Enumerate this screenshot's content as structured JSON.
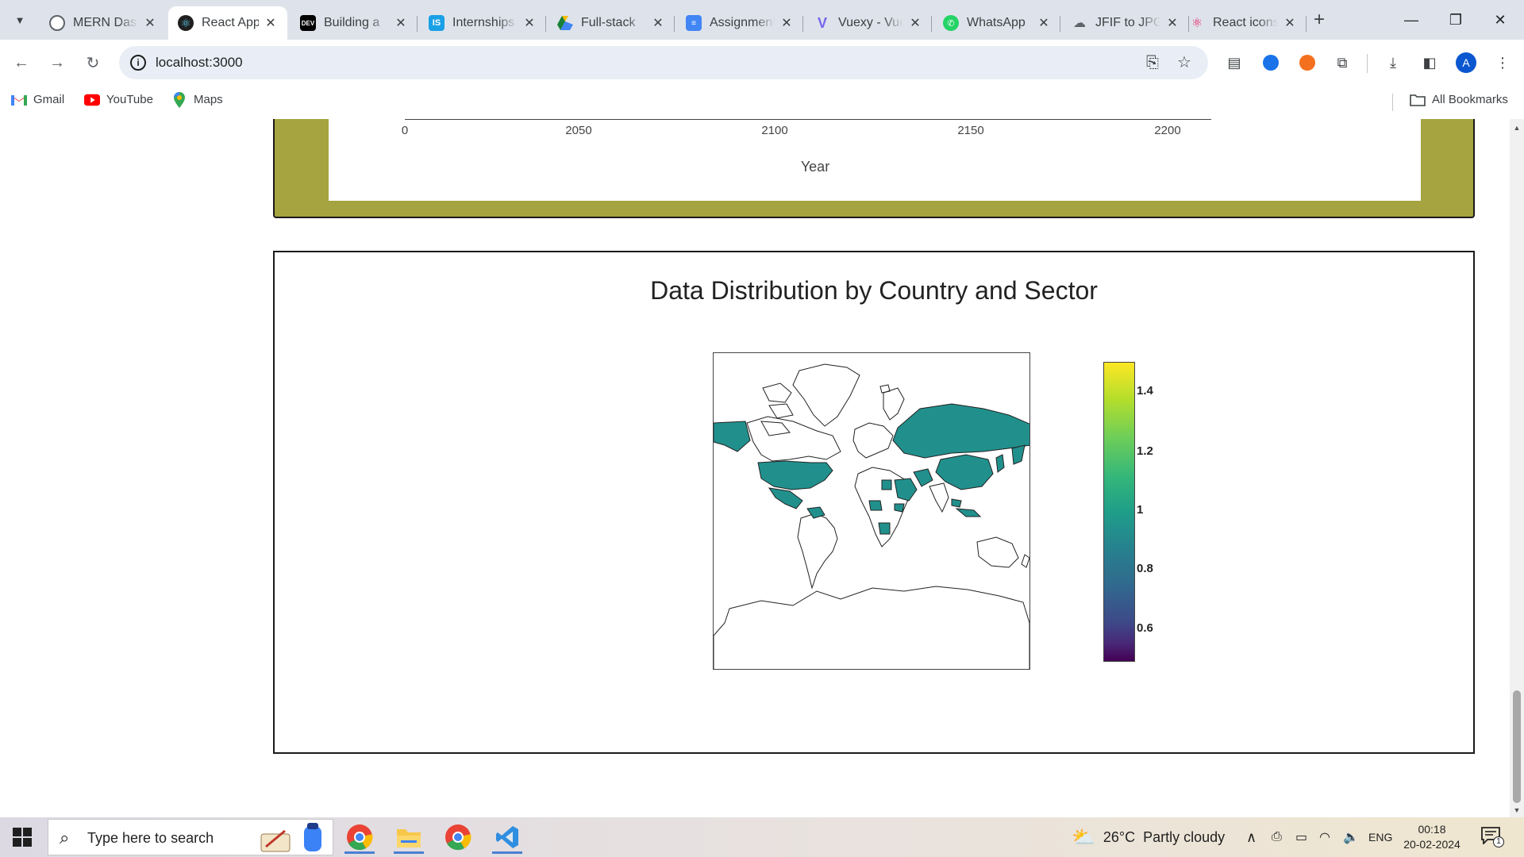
{
  "browser": {
    "tabs": [
      {
        "title": "MERN Dashboard",
        "favicon": "openai-icon",
        "color": "#202124",
        "active": false
      },
      {
        "title": "React App",
        "favicon": "react-icon",
        "color": "#1f1f1f",
        "active": true
      },
      {
        "title": "Building a",
        "favicon": "dev-icon",
        "color": "#000000",
        "active": false
      },
      {
        "title": "Internships",
        "favicon": "internshala-icon",
        "color": "#1aa0e6",
        "active": false
      },
      {
        "title": "Full-stack",
        "favicon": "google-drive-icon",
        "color": "#188038",
        "active": false
      },
      {
        "title": "Assignment",
        "favicon": "google-docs-icon",
        "color": "#4285f4",
        "active": false
      },
      {
        "title": "Vuexy - Vuejs",
        "favicon": "vuexy-icon",
        "color": "#7367f0",
        "active": false
      },
      {
        "title": "WhatsApp",
        "favicon": "whatsapp-icon",
        "color": "#25d366",
        "active": false
      },
      {
        "title": "JFIF to JPG",
        "favicon": "cloud-icon",
        "color": "#5f6368",
        "active": false
      },
      {
        "title": "React icons",
        "favicon": "react-icon",
        "color": "#e91e63",
        "active": false
      }
    ],
    "url": "localhost:3000",
    "avatar_letter": "A",
    "bookmarks": [
      {
        "label": "Gmail",
        "icon": "gmail-icon"
      },
      {
        "label": "YouTube",
        "icon": "youtube-icon"
      },
      {
        "label": "Maps",
        "icon": "maps-icon"
      }
    ],
    "all_bookmarks_label": "All Bookmarks"
  },
  "colors": {
    "olive_panel": "#a5a440",
    "country_fill": "#21908d",
    "accent_blue": "#0b57d0"
  },
  "page": {
    "top_chart": {
      "xaxis_title": "Year",
      "x_ticks": [
        "0",
        "2050",
        "2100",
        "2150",
        "2200"
      ]
    },
    "map_chart": {
      "title": "Data Distribution by Country and Sector",
      "colorbar_ticks": [
        "1.4",
        "1.2",
        "1",
        "0.8",
        "0.6"
      ]
    }
  },
  "chart_data": [
    {
      "type": "line",
      "xlabel": "Year",
      "x_ticks": [
        2050,
        2100,
        2150,
        2200
      ],
      "y_ticks_visible": [
        0
      ],
      "grid": false
    },
    {
      "type": "heatmap",
      "title": "Data Distribution by Country and Sector",
      "projection": "mercator",
      "colorscale": "viridis",
      "colorbar_range": [
        0.5,
        1.5
      ],
      "colorbar_ticks": [
        1.4,
        1.2,
        1,
        0.8,
        0.6
      ],
      "highlighted_country_value": 1,
      "highlighted_countries": [
        "United States",
        "Mexico",
        "Venezuela",
        "Russia",
        "China",
        "Saudi Arabia",
        "Iran",
        "Egypt",
        "Nigeria",
        "Angola",
        "Ethiopia",
        "Indonesia",
        "Malaysia",
        "Japan",
        "Canada (part)",
        "Alaska"
      ]
    }
  ],
  "taskbar": {
    "search_placeholder": "Type here to search",
    "weather": "26°C  Partly cloudy",
    "language": "ENG",
    "time": "00:18",
    "date": "20-02-2024",
    "notification_count": "1"
  }
}
